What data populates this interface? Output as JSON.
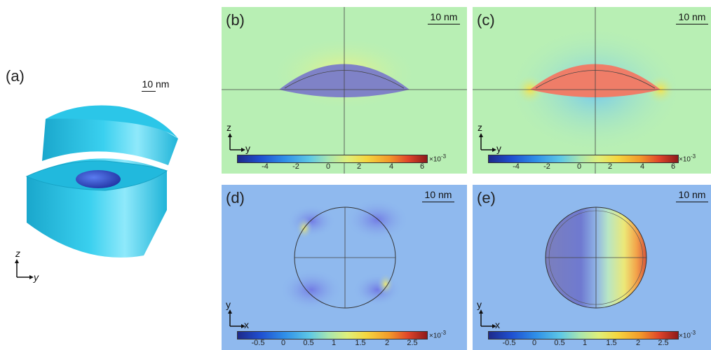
{
  "panels": {
    "a": {
      "label": "(a)",
      "scale": "10 nm",
      "axis_z": "z",
      "axis_y": "y"
    },
    "b": {
      "label": "(b)",
      "scale": "10 nm",
      "axis_v": "z",
      "axis_h": "y",
      "ticks": [
        "-4",
        "-2",
        "0",
        "2",
        "4",
        "6"
      ],
      "multiplier": "×10",
      "exp": "-3"
    },
    "c": {
      "label": "(c)",
      "scale": "10 nm",
      "axis_v": "z",
      "axis_h": "y",
      "ticks": [
        "-4",
        "-2",
        "0",
        "2",
        "4",
        "6"
      ],
      "multiplier": "×10",
      "exp": "-3"
    },
    "d": {
      "label": "(d)",
      "scale": "10 nm",
      "axis_v": "y",
      "axis_h": "x",
      "ticks": [
        "-0.5",
        "0",
        "0.5",
        "1",
        "1.5",
        "2",
        "2.5"
      ],
      "multiplier": "×10",
      "exp": "-3"
    },
    "e": {
      "label": "(e)",
      "scale": "10 nm",
      "axis_v": "y",
      "axis_h": "x",
      "ticks": [
        "-0.5",
        "0",
        "0.5",
        "1",
        "1.5",
        "2",
        "2.5"
      ],
      "multiplier": "×10",
      "exp": "-3"
    }
  },
  "colors": {
    "field_bg_top": "#b5eeb8",
    "field_bg_bottom": "#8db9ee",
    "cylinder": "#25c2e6",
    "lens_b": "#7f82c7",
    "lens_c": "#ef7d68"
  }
}
